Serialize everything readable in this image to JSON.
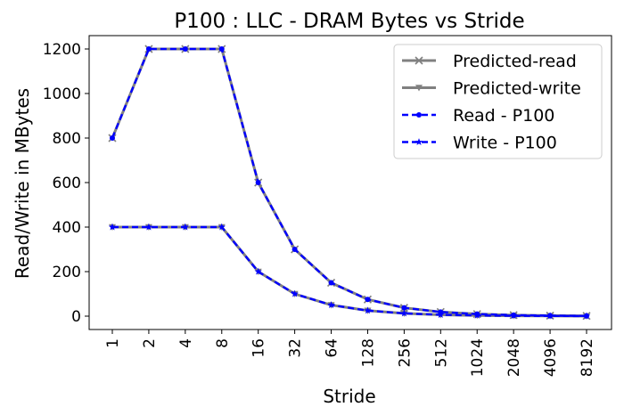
{
  "chart_data": {
    "type": "line",
    "title": "P100 : LLC - DRAM Bytes vs Stride",
    "xlabel": "Stride",
    "ylabel": "Read/Write in MBytes",
    "categories": [
      "1",
      "2",
      "4",
      "8",
      "16",
      "32",
      "64",
      "128",
      "256",
      "512",
      "1024",
      "2048",
      "4096",
      "8192"
    ],
    "ylim": [
      -60,
      1260
    ],
    "yticks": [
      0,
      200,
      400,
      600,
      800,
      1000,
      1200
    ],
    "grid": false,
    "legend_position": "top-right",
    "series": [
      {
        "name": "Predicted-read",
        "color": "#808080",
        "linestyle": "solid",
        "marker": "x",
        "values": [
          800,
          1200,
          1200,
          1200,
          600,
          300,
          150,
          75,
          37.5,
          18.75,
          9.375,
          4.6875,
          2.34375,
          1.171875
        ]
      },
      {
        "name": "Predicted-write",
        "color": "#808080",
        "linestyle": "solid",
        "marker": "v",
        "values": [
          400,
          400,
          400,
          400,
          200,
          100,
          50,
          25,
          12.5,
          6.25,
          3.125,
          1.5625,
          0.78125,
          0.390625
        ]
      },
      {
        "name": "Read - P100",
        "color": "#0000ff",
        "linestyle": "dashed",
        "marker": "o",
        "values": [
          800,
          1200,
          1200,
          1200,
          600,
          300,
          150,
          75,
          37.5,
          18.75,
          9.375,
          4.6875,
          2.34375,
          1.171875
        ]
      },
      {
        "name": "Write - P100",
        "color": "#0000ff",
        "linestyle": "dashed",
        "marker": "*",
        "values": [
          400,
          400,
          400,
          400,
          200,
          100,
          50,
          25,
          12.5,
          6.25,
          3.125,
          1.5625,
          0.78125,
          0.390625
        ]
      }
    ]
  }
}
